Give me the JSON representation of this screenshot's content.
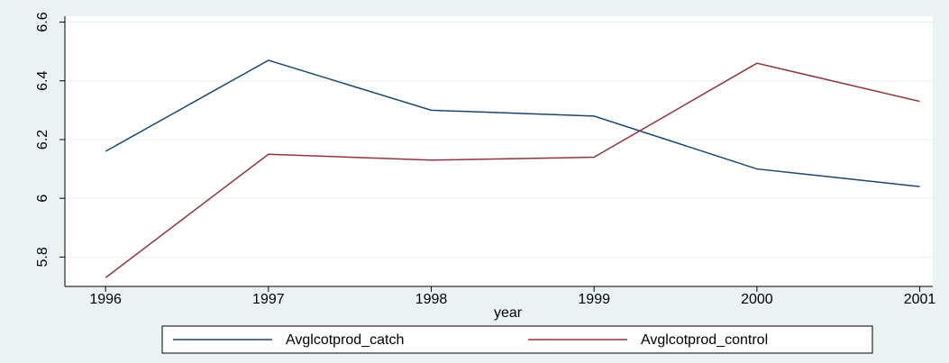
{
  "chart_data": {
    "type": "line",
    "x_label": "year",
    "x": [
      1996,
      1997,
      1998,
      1999,
      2000,
      2001
    ],
    "series": [
      {
        "name": "Avglcotprod_catch",
        "color": "#1a476f",
        "values": [
          6.16,
          6.47,
          6.3,
          6.28,
          6.1,
          6.04
        ]
      },
      {
        "name": "Avglcotprod_control",
        "color": "#90353b",
        "values": [
          5.73,
          6.15,
          6.13,
          6.14,
          6.46,
          6.33
        ]
      }
    ],
    "xlim": [
      1995.75,
      2001.08
    ],
    "xticks": [
      1996,
      1997,
      1998,
      1999,
      2000,
      2001
    ],
    "ylim": [
      5.7,
      6.62
    ],
    "yticks": [
      5.8,
      6,
      6.2,
      6.4,
      6.6
    ],
    "grid": true,
    "legend": "bottom"
  }
}
